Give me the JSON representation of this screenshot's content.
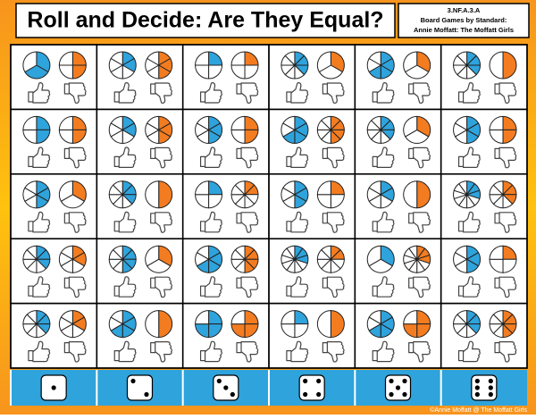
{
  "header": {
    "title": "Roll and Decide: Are They Equal?",
    "info": [
      "3.NF.A.3.A",
      "Board Games by Standard:",
      "Annie Moffatt: The Moffatt Girls"
    ]
  },
  "board": {
    "left_color": "#2fa3dc",
    "right_color": "#f47c20",
    "rows": [
      [
        {
          "left": [
            3,
            2
          ],
          "right": [
            4,
            2
          ]
        },
        {
          "left": [
            6,
            2
          ],
          "right": [
            6,
            3
          ]
        },
        {
          "left": [
            4,
            1
          ],
          "right": [
            4,
            1
          ]
        },
        {
          "left": [
            8,
            3
          ],
          "right": [
            3,
            1
          ]
        },
        {
          "left": [
            6,
            4
          ],
          "right": [
            3,
            1
          ]
        },
        {
          "left": [
            8,
            3
          ],
          "right": [
            2,
            1
          ]
        }
      ],
      [
        {
          "left": [
            4,
            2
          ],
          "right": [
            4,
            2
          ]
        },
        {
          "left": [
            6,
            2
          ],
          "right": [
            6,
            3
          ]
        },
        {
          "left": [
            6,
            3
          ],
          "right": [
            4,
            2
          ]
        },
        {
          "left": [
            6,
            4
          ],
          "right": [
            8,
            4
          ]
        },
        {
          "left": [
            8,
            3
          ],
          "right": [
            3,
            1
          ]
        },
        {
          "left": [
            6,
            3
          ],
          "right": [
            4,
            2
          ]
        }
      ],
      [
        {
          "left": [
            6,
            3
          ],
          "right": [
            3,
            1
          ]
        },
        {
          "left": [
            8,
            3
          ],
          "right": [
            2,
            1
          ]
        },
        {
          "left": [
            4,
            1
          ],
          "right": [
            8,
            2
          ]
        },
        {
          "left": [
            6,
            3
          ],
          "right": [
            4,
            1
          ]
        },
        {
          "left": [
            6,
            2
          ],
          "right": [
            2,
            1
          ]
        },
        {
          "left": [
            10,
            3
          ],
          "right": [
            8,
            3
          ]
        }
      ],
      [
        {
          "left": [
            8,
            3
          ],
          "right": [
            6,
            2
          ]
        },
        {
          "left": [
            8,
            4
          ],
          "right": [
            3,
            1
          ]
        },
        {
          "left": [
            6,
            4
          ],
          "right": [
            8,
            4
          ]
        },
        {
          "left": [
            10,
            3
          ],
          "right": [
            8,
            2
          ]
        },
        {
          "left": [
            3,
            1
          ],
          "right": [
            10,
            3
          ]
        },
        {
          "left": [
            6,
            3
          ],
          "right": [
            4,
            1
          ]
        }
      ],
      [
        {
          "left": [
            8,
            3
          ],
          "right": [
            6,
            2
          ]
        },
        {
          "left": [
            6,
            4
          ],
          "right": [
            2,
            1
          ]
        },
        {
          "left": [
            4,
            3
          ],
          "right": [
            4,
            3
          ]
        },
        {
          "left": [
            4,
            1
          ],
          "right": [
            2,
            1
          ]
        },
        {
          "left": [
            6,
            4
          ],
          "right": [
            4,
            3
          ]
        },
        {
          "left": [
            8,
            3
          ],
          "right": [
            8,
            4
          ]
        }
      ]
    ],
    "dice": [
      1,
      2,
      3,
      4,
      5,
      6
    ]
  },
  "footer": "©Annie Moffatt @ The Moffatt Girls"
}
